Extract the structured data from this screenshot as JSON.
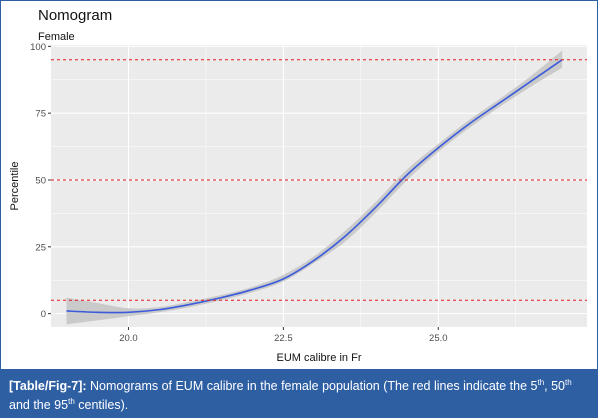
{
  "chart_data": {
    "type": "line",
    "title": "Nomogram",
    "subtitle": "Female",
    "xlabel": "EUM calibre in Fr",
    "ylabel": "Percentile",
    "xlim": [
      18.75,
      27.4
    ],
    "ylim": [
      -5,
      100.5
    ],
    "x_ticks": [
      "20.0",
      "22.5",
      "25.0"
    ],
    "y_ticks": [
      "0",
      "25",
      "50",
      "75",
      "100"
    ],
    "grid": true,
    "legend": "none",
    "reference_lines": [
      5,
      50,
      95
    ],
    "series": [
      {
        "x": [
          19.0,
          19.5,
          20.0,
          20.5,
          21.0,
          21.5,
          22.0,
          22.5,
          23.0,
          23.5,
          24.0,
          24.5,
          25.0,
          25.5,
          26.0,
          26.5,
          27.0
        ],
        "values": [
          1,
          0.5,
          0.5,
          1.5,
          3.5,
          6,
          9,
          13,
          20,
          29,
          40,
          52,
          62,
          71,
          79,
          87,
          95
        ],
        "band_lower": [
          -4,
          -2.5,
          -1,
          0.5,
          2.5,
          5,
          8,
          12,
          19,
          27,
          38,
          50,
          60.5,
          69.5,
          77.5,
          85,
          92
        ],
        "band_upper": [
          6,
          4,
          2,
          2.5,
          4.5,
          7,
          10,
          14.5,
          21.5,
          31,
          42,
          54,
          63.5,
          72.5,
          80.5,
          89,
          98.5
        ]
      }
    ],
    "colors": {
      "line": "#3b5bdb",
      "band": "#c6c6c6",
      "reference": "#e41a1c",
      "panel": "#ebebeb",
      "grid": "#ffffff"
    }
  },
  "caption": {
    "tag": "[Table/Fig-7]:",
    "text": "Nomograms of EUM calibre in the female population (The red lines indicate the 5",
    "sup1": "th",
    "sep1": ", 50",
    "sup2": "th",
    "sep2": " and the 95",
    "sup3": "th",
    "tail": " centiles)."
  }
}
